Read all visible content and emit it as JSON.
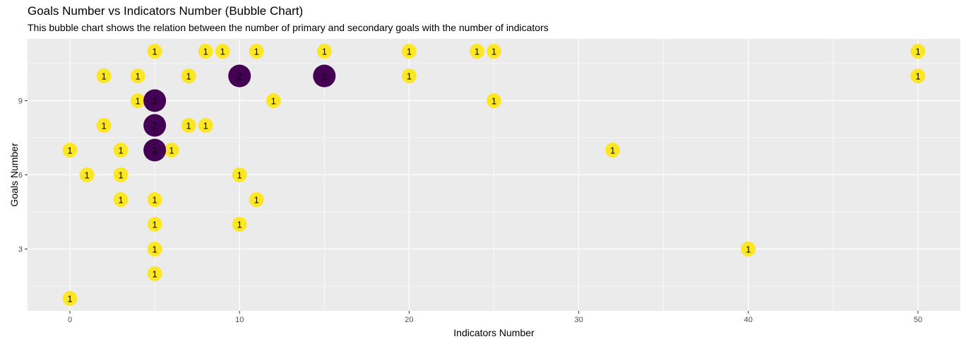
{
  "chart_data": {
    "type": "scatter",
    "title": "Goals Number vs Indicators Number (Bubble Chart)",
    "subtitle": "This bubble chart shows the relation between the number of primary and secondary goals with the number of indicators",
    "xlabel": "Indicators Number",
    "ylabel": "Goals Number",
    "xlim": [
      -2.5,
      52.5
    ],
    "ylim": [
      0.5,
      11.5
    ],
    "x_ticks": [
      0,
      10,
      20,
      30,
      40,
      50
    ],
    "y_ticks": [
      3,
      6,
      9
    ],
    "grid": true,
    "legend": "none",
    "point_label": "count",
    "colors": {
      "count_1": "#FDE725",
      "count_2": "#440154",
      "panel": "#EBEBEB",
      "grid": "#FFFFFF"
    },
    "points": [
      {
        "x": 5,
        "y": 11,
        "count": 1
      },
      {
        "x": 8,
        "y": 11,
        "count": 1
      },
      {
        "x": 9,
        "y": 11,
        "count": 1
      },
      {
        "x": 11,
        "y": 11,
        "count": 1
      },
      {
        "x": 15,
        "y": 11,
        "count": 1
      },
      {
        "x": 20,
        "y": 11,
        "count": 1
      },
      {
        "x": 24,
        "y": 11,
        "count": 1
      },
      {
        "x": 25,
        "y": 11,
        "count": 1
      },
      {
        "x": 50,
        "y": 11,
        "count": 1
      },
      {
        "x": 2,
        "y": 10,
        "count": 1
      },
      {
        "x": 4,
        "y": 10,
        "count": 1
      },
      {
        "x": 7,
        "y": 10,
        "count": 1
      },
      {
        "x": 10,
        "y": 10,
        "count": 2
      },
      {
        "x": 15,
        "y": 10,
        "count": 2
      },
      {
        "x": 20,
        "y": 10,
        "count": 1
      },
      {
        "x": 50,
        "y": 10,
        "count": 1
      },
      {
        "x": 4,
        "y": 9,
        "count": 1
      },
      {
        "x": 5,
        "y": 9,
        "count": 2
      },
      {
        "x": 12,
        "y": 9,
        "count": 1
      },
      {
        "x": 25,
        "y": 9,
        "count": 1
      },
      {
        "x": 2,
        "y": 8,
        "count": 1
      },
      {
        "x": 5,
        "y": 8,
        "count": 2
      },
      {
        "x": 7,
        "y": 8,
        "count": 1
      },
      {
        "x": 8,
        "y": 8,
        "count": 1
      },
      {
        "x": 0,
        "y": 7,
        "count": 1
      },
      {
        "x": 3,
        "y": 7,
        "count": 1
      },
      {
        "x": 5,
        "y": 7,
        "count": 2
      },
      {
        "x": 6,
        "y": 7,
        "count": 1
      },
      {
        "x": 32,
        "y": 7,
        "count": 1
      },
      {
        "x": 1,
        "y": 6,
        "count": 1
      },
      {
        "x": 3,
        "y": 6,
        "count": 1
      },
      {
        "x": 10,
        "y": 6,
        "count": 1
      },
      {
        "x": 3,
        "y": 5,
        "count": 1
      },
      {
        "x": 5,
        "y": 5,
        "count": 1
      },
      {
        "x": 11,
        "y": 5,
        "count": 1
      },
      {
        "x": 5,
        "y": 4,
        "count": 1
      },
      {
        "x": 10,
        "y": 4,
        "count": 1
      },
      {
        "x": 5,
        "y": 3,
        "count": 1
      },
      {
        "x": 40,
        "y": 3,
        "count": 1
      },
      {
        "x": 5,
        "y": 2,
        "count": 1
      },
      {
        "x": 0,
        "y": 1,
        "count": 1
      }
    ]
  }
}
